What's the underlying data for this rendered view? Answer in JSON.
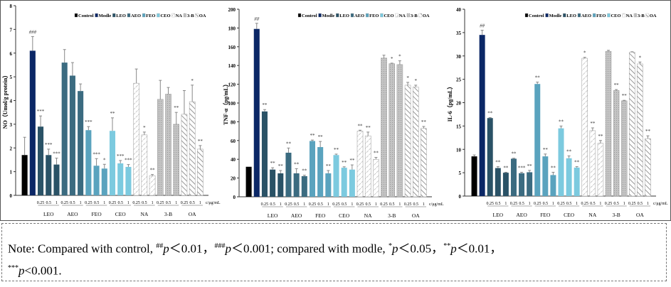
{
  "legend": [
    "Control",
    "Modle",
    "LEO",
    "AEO",
    "FEO",
    "CEO",
    "NA",
    "3-B",
    "OA"
  ],
  "colors": {
    "Control": "#000000",
    "Modle": "#0b2766",
    "LEO": "#2a5266",
    "AEO": "#3b6b80",
    "FEO": "#5aa3be",
    "CEO": "#7ccadf",
    "NA": "hatch",
    "3-B": "#bcbcbc",
    "OA": "stripe"
  },
  "dose_labels": [
    "0.25",
    "0.5",
    "1"
  ],
  "unit_label": "c/μg/mL",
  "chart_data": [
    {
      "type": "bar",
      "ylabel": "NO（Umol/g protein）",
      "ylim": [
        0,
        8
      ],
      "yticks": [
        0,
        1,
        2,
        3,
        4,
        5,
        6,
        7,
        8
      ],
      "groups": [
        "LEO",
        "AEO",
        "FEO",
        "CEO",
        "NA",
        "3-B",
        "OA"
      ],
      "values": [
        1.7,
        6.1,
        2.9,
        1.7,
        1.3,
        5.6,
        5.05,
        4.4,
        2.75,
        1.25,
        1.13,
        2.72,
        1.35,
        1.2,
        4.73,
        2.55,
        0.83,
        4.05,
        4.27,
        3.0,
        3.42,
        3.95,
        1.95
      ],
      "errors": [
        0.75,
        0.6,
        0.45,
        0.25,
        0.27,
        0.55,
        0.55,
        0.3,
        0.15,
        0.3,
        0.18,
        0.55,
        0.12,
        0.1,
        0.6,
        0.12,
        0.05,
        0.8,
        0.28,
        0.5,
        1.0,
        0.7,
        0.15
      ],
      "annotations": [
        "",
        "###",
        "***",
        "***",
        "***",
        "",
        "",
        "",
        "***",
        "***",
        "*",
        "**",
        "***",
        "***",
        "",
        "*",
        "**",
        "",
        "",
        "**",
        "",
        "*",
        "**"
      ]
    },
    {
      "type": "bar",
      "ylabel": "TNF-α（pg/mL）",
      "ylim": [
        0,
        200
      ],
      "yticks": [
        0,
        20,
        40,
        60,
        80,
        100,
        120,
        140,
        160,
        180,
        200
      ],
      "groups": [
        "LEO",
        "AEO",
        "FEO",
        "CEO",
        "NA",
        "3-B",
        "OA"
      ],
      "values": [
        32,
        179,
        91,
        29,
        25,
        47,
        25,
        22,
        59.5,
        53,
        25,
        44.5,
        31,
        29,
        70,
        65,
        40,
        148,
        142,
        141,
        119,
        117,
        73
      ],
      "errors": [
        0,
        6,
        2,
        2,
        3,
        5,
        5,
        1,
        1,
        6,
        3,
        1,
        1,
        5,
        1,
        4,
        2,
        3,
        0.5,
        4,
        3,
        2,
        2
      ],
      "annotations": [
        "",
        "##",
        "**",
        "**",
        "**",
        "**",
        "**",
        "**",
        "**",
        "**",
        "**",
        "**",
        "**",
        "**",
        "**",
        "**",
        "**",
        "",
        "*",
        "*",
        "*",
        "*",
        "**"
      ]
    },
    {
      "type": "bar",
      "ylabel": "IL-6（pg/mL）",
      "ylim": [
        0,
        40
      ],
      "yticks": [
        0,
        5,
        10,
        15,
        20,
        25,
        30,
        35,
        40
      ],
      "groups": [
        "LEO",
        "AEO",
        "FEO",
        "CEO",
        "NA",
        "3-B",
        "OA"
      ],
      "values": [
        8.5,
        34.5,
        16.7,
        6,
        5,
        8,
        4.9,
        5.1,
        24,
        8.5,
        4.5,
        14.5,
        8.1,
        6.1,
        29.5,
        14,
        11.3,
        31,
        22.6,
        20.4,
        30.8,
        28.3,
        12.3
      ],
      "errors": [
        0.3,
        1,
        0.1,
        0.3,
        0.1,
        0.1,
        0.2,
        0.4,
        0.4,
        0.5,
        0.6,
        0.5,
        0.5,
        0.2,
        0.2,
        0.6,
        0.6,
        0.2,
        0.2,
        0.1,
        0.1,
        0.4,
        0.6
      ],
      "annotations": [
        "",
        "##",
        "**",
        "**",
        "**",
        "**",
        "***",
        "**",
        "**",
        "**",
        "**",
        "**",
        "**",
        "**",
        "*",
        "**",
        "**",
        "",
        "**",
        "**",
        "",
        "*",
        "**"
      ]
    }
  ],
  "note": {
    "prefix": "Note: Compared with control, ",
    "s1": "##",
    "t1": "p",
    "r1": "＜0.01，",
    "s2": "###",
    "t2": "p",
    "r2": "＜0.001; compared with modle, ",
    "s3": "*",
    "t3": "p",
    "r3": "＜0.05，",
    "s4": "**",
    "t4": "p",
    "r4": "＜0.01，",
    "s5": "***",
    "t5": "p",
    "r5": "<0.001."
  }
}
